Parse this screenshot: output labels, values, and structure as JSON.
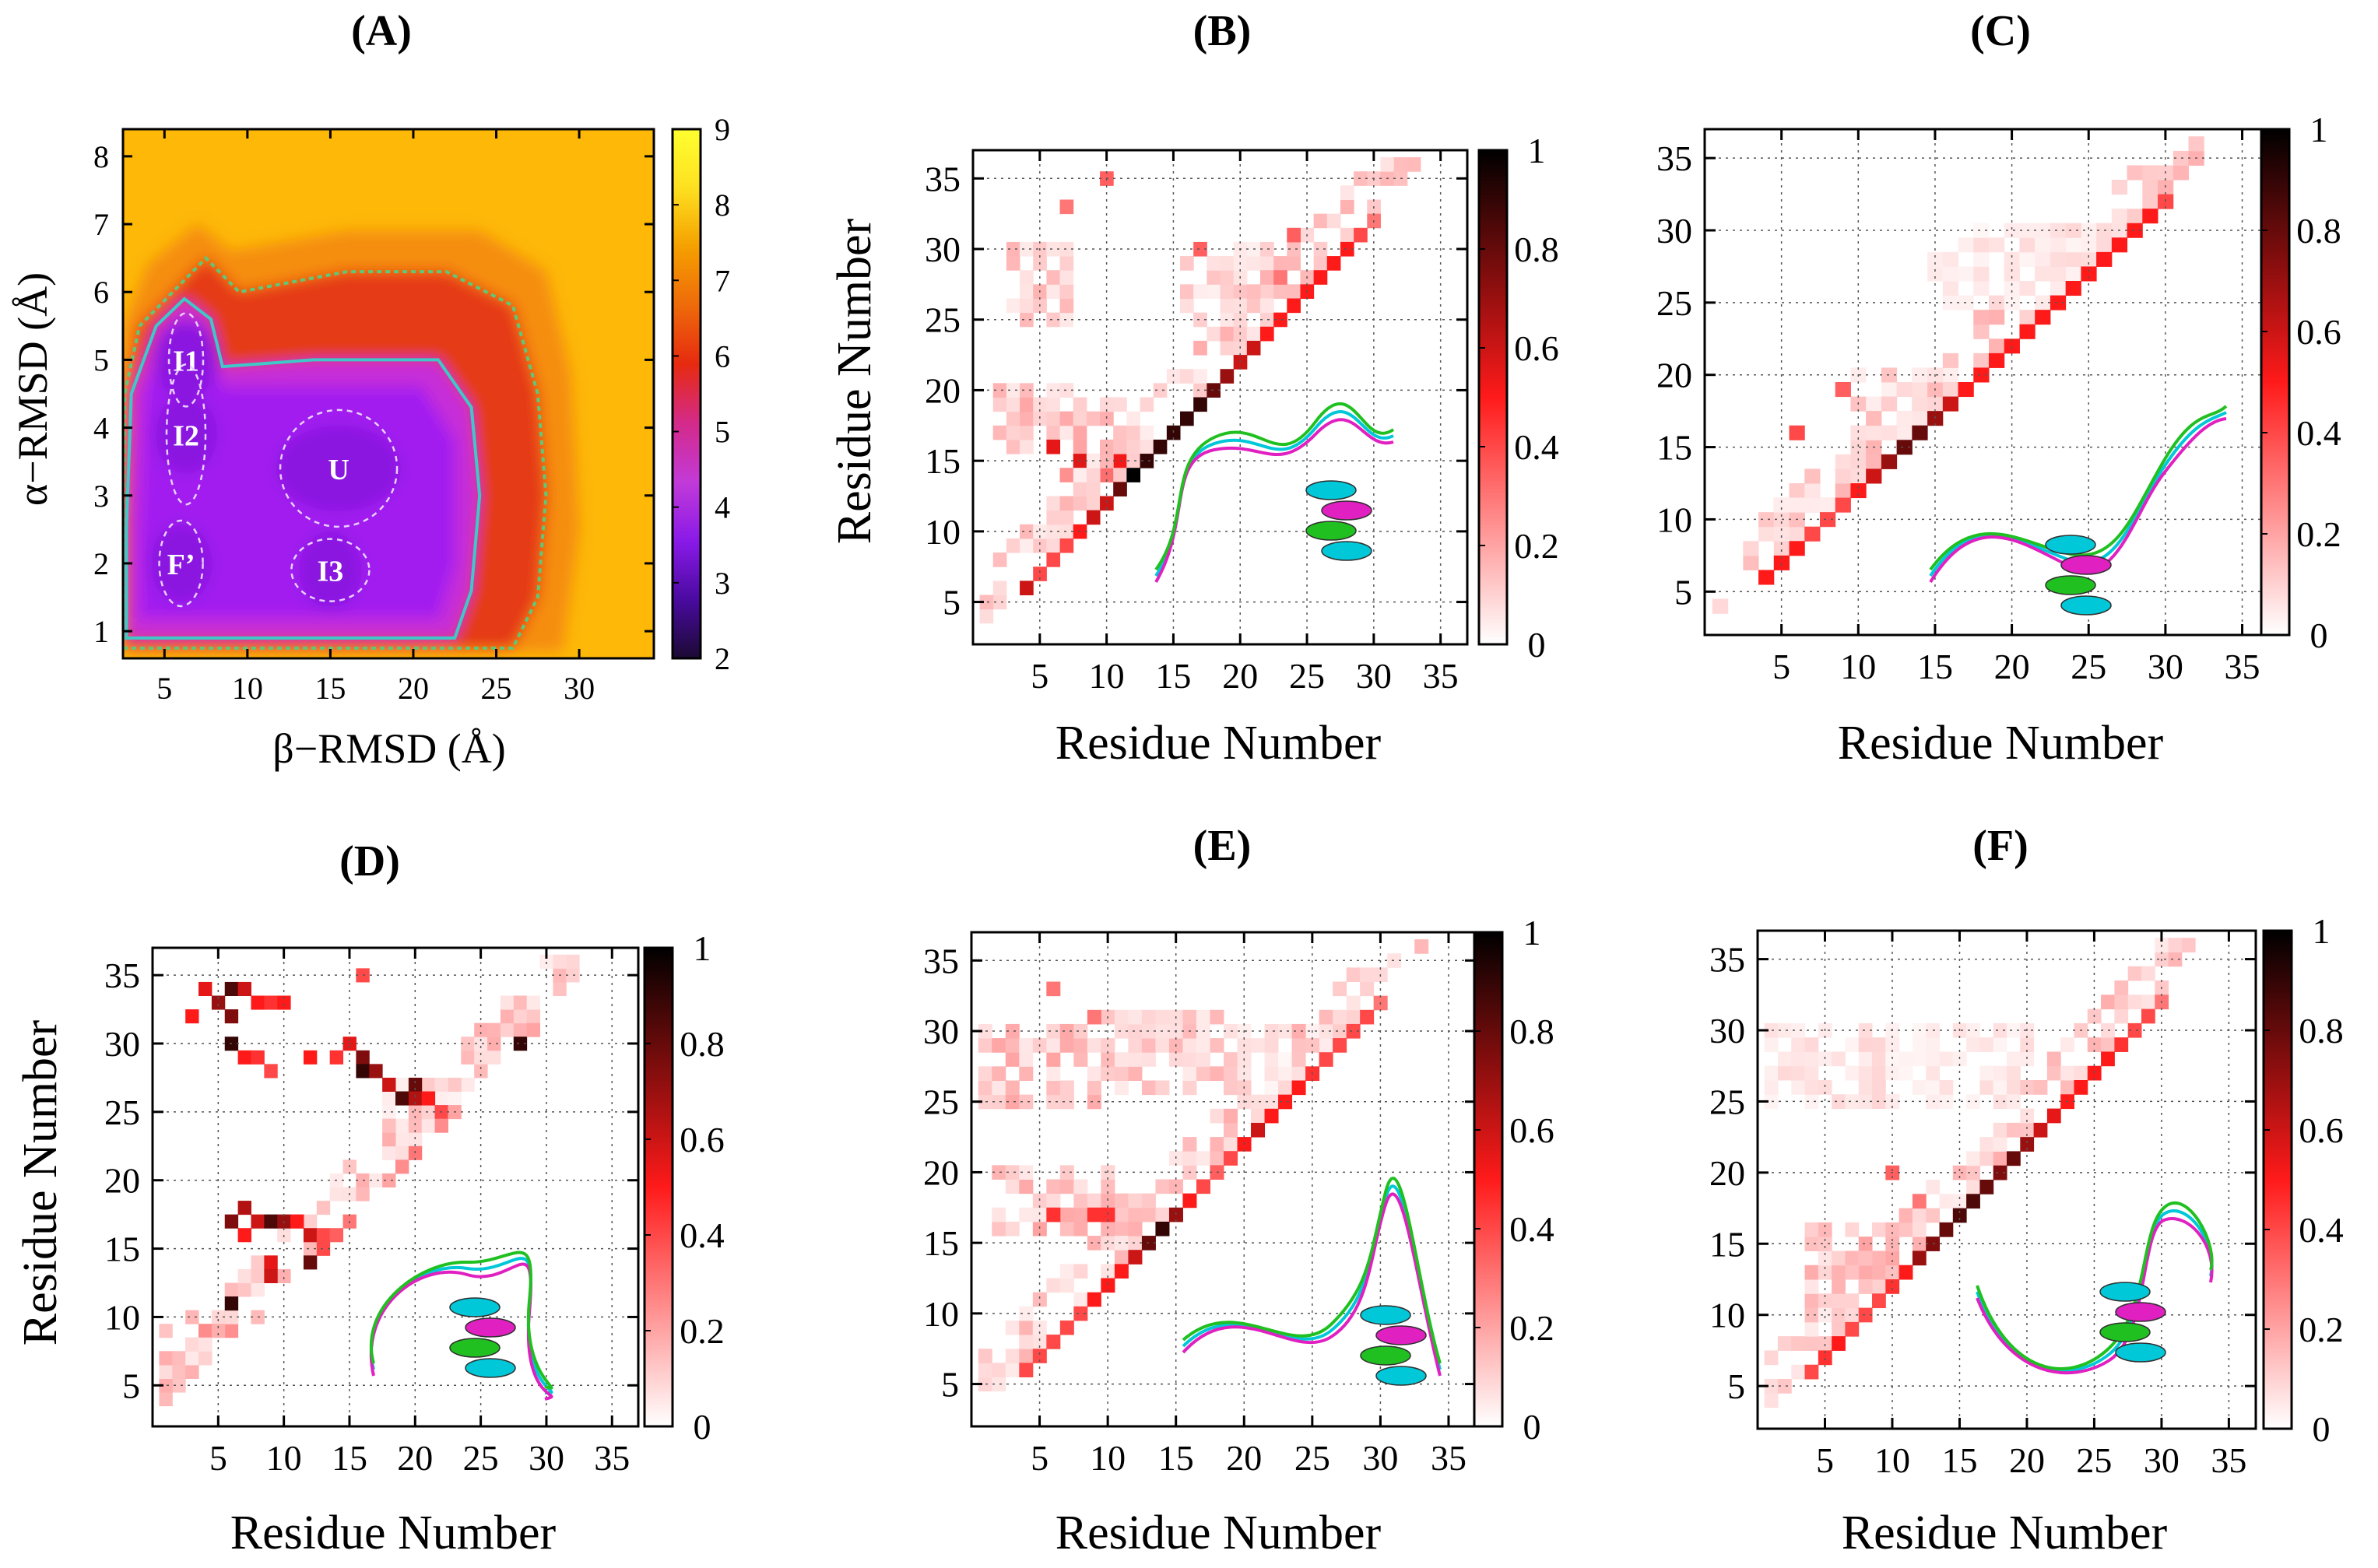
{
  "colors": {
    "pmf_stops": [
      "#1b0a33",
      "#4a0aa0",
      "#8a1ae8",
      "#c23ad8",
      "#d42a8a",
      "#e62a10",
      "#ee6a0a",
      "#f5a000",
      "#fde020",
      "#ffff30"
    ],
    "pmf_background": "#fdb808",
    "pmf_contour_outer": "#5fc878",
    "pmf_contour_inner": "#40c8c8",
    "pmf_basin_line": "#e8d0ff",
    "cm_low": "#ffffff",
    "cm_mid": "#ff1a1a",
    "cm_high": "#000000",
    "structure_colors": [
      "#00c8d8",
      "#e020c0",
      "#20c020"
    ]
  },
  "chart_data": [
    {
      "panel": "(A)",
      "type": "heatmap",
      "xlabel": "β−RMSD (Å)",
      "ylabel": "α−RMSD (Å)",
      "xlim": [
        2.5,
        34.5
      ],
      "ylim": [
        0.6,
        8.4
      ],
      "xticks": [
        5,
        10,
        15,
        20,
        25,
        30
      ],
      "yticks": [
        1,
        2,
        3,
        4,
        5,
        6,
        7,
        8
      ],
      "colorbar": {
        "range": [
          2,
          9
        ],
        "ticks": [
          2,
          3,
          4,
          5,
          6,
          7,
          8,
          9
        ]
      },
      "basins": [
        {
          "label": "I1",
          "x": 6.3,
          "y": 5.0
        },
        {
          "label": "I2",
          "x": 6.3,
          "y": 3.9
        },
        {
          "label": "U",
          "x": 15.5,
          "y": 3.4
        },
        {
          "label": "F’",
          "x": 6.0,
          "y": 2.0
        },
        {
          "label": "I3",
          "x": 15.0,
          "y": 1.9
        }
      ]
    },
    {
      "panel": "(B)",
      "type": "heatmap",
      "xlabel": "Residue Number",
      "ylabel": "Residue Number",
      "xlim": [
        0,
        37
      ],
      "ylim": [
        2,
        37
      ],
      "xticks": [
        5,
        10,
        15,
        20,
        25,
        30,
        35
      ],
      "yticks": [
        5,
        10,
        15,
        20,
        25,
        30,
        35
      ],
      "colorbar": {
        "range": [
          0,
          1
        ],
        "ticks": [
          "0",
          "0.2",
          "0.4",
          "0.6",
          "0.8",
          "1"
        ]
      },
      "diagonal": [
        [
          6,
          0.6
        ],
        [
          7,
          0.4
        ],
        [
          8,
          0.4
        ],
        [
          9,
          0.4
        ],
        [
          10,
          0.5
        ],
        [
          11,
          0.6
        ],
        [
          12,
          0.6
        ],
        [
          13,
          0.8
        ],
        [
          14,
          1.0
        ],
        [
          15,
          0.9
        ],
        [
          16,
          0.9
        ],
        [
          17,
          0.9
        ],
        [
          18,
          0.9
        ],
        [
          19,
          0.9
        ],
        [
          20,
          0.8
        ],
        [
          21,
          0.7
        ],
        [
          22,
          0.6
        ],
        [
          23,
          0.6
        ],
        [
          24,
          0.5
        ],
        [
          25,
          0.5
        ],
        [
          26,
          0.5
        ],
        [
          27,
          0.5
        ],
        [
          28,
          0.5
        ],
        [
          29,
          0.5
        ],
        [
          30,
          0.5
        ],
        [
          31,
          0.4
        ],
        [
          32,
          0.3
        ]
      ],
      "region_boxes": [
        [
          1,
          10,
          5,
          4,
          0.06
        ],
        [
          2,
          11,
          20,
          5,
          0.12
        ],
        [
          3,
          7,
          30,
          6,
          0.1
        ],
        [
          7,
          14,
          15,
          2,
          0.35
        ],
        [
          16,
          22,
          30,
          6,
          0.08
        ]
      ],
      "hotspots": [
        [
          6,
          16,
          0.55
        ],
        [
          7,
          33,
          0.3
        ],
        [
          10,
          35,
          0.35
        ],
        [
          17,
          30,
          0.35
        ],
        [
          24,
          31,
          0.35
        ],
        [
          23,
          28,
          0.3
        ]
      ]
    },
    {
      "panel": "(C)",
      "type": "heatmap",
      "xlabel": "Residue Number",
      "ylabel": "",
      "xlim": [
        0,
        37
      ],
      "ylim": [
        2,
        37
      ],
      "xticks": [
        5,
        10,
        15,
        20,
        25,
        30,
        35
      ],
      "yticks": [
        5,
        10,
        15,
        20,
        25,
        30,
        35
      ],
      "colorbar": {
        "range": [
          0,
          1
        ],
        "ticks": [
          "0",
          "0.2",
          "0.4",
          "0.6",
          "0.8",
          "1"
        ]
      },
      "diagonal": [
        [
          6,
          0.5
        ],
        [
          7,
          0.5
        ],
        [
          8,
          0.5
        ],
        [
          9,
          0.4
        ],
        [
          10,
          0.4
        ],
        [
          11,
          0.4
        ],
        [
          12,
          0.5
        ],
        [
          13,
          0.6
        ],
        [
          14,
          0.7
        ],
        [
          15,
          0.8
        ],
        [
          16,
          0.8
        ],
        [
          17,
          0.7
        ],
        [
          18,
          0.6
        ],
        [
          19,
          0.5
        ],
        [
          20,
          0.5
        ],
        [
          21,
          0.5
        ],
        [
          22,
          0.5
        ],
        [
          23,
          0.5
        ],
        [
          24,
          0.5
        ],
        [
          25,
          0.5
        ],
        [
          26,
          0.5
        ],
        [
          27,
          0.5
        ],
        [
          28,
          0.5
        ],
        [
          29,
          0.5
        ],
        [
          30,
          0.5
        ],
        [
          31,
          0.5
        ],
        [
          32,
          0.4
        ]
      ],
      "region_boxes": [
        [
          1,
          8,
          4,
          6,
          0.12
        ],
        [
          5,
          10,
          12,
          5,
          0.2
        ],
        [
          10,
          20,
          20,
          6,
          0.08
        ],
        [
          15,
          30,
          30,
          6,
          0.05
        ]
      ],
      "hotspots": [
        [
          6,
          16,
          0.4
        ],
        [
          9,
          19,
          0.35
        ]
      ]
    },
    {
      "panel": "(D)",
      "type": "heatmap",
      "xlabel": "Residue Number",
      "ylabel": "Residue Number",
      "xlim": [
        0,
        37
      ],
      "ylim": [
        2,
        37
      ],
      "xticks": [
        5,
        10,
        15,
        20,
        25,
        30,
        35
      ],
      "yticks": [
        5,
        10,
        15,
        20,
        25,
        30,
        35
      ],
      "colorbar": {
        "range": [
          0,
          1
        ],
        "ticks": [
          "0",
          "0.2",
          "0.4",
          "0.6",
          "0.8",
          "1"
        ]
      },
      "diagonal": [
        [
          10,
          0.15
        ],
        [
          14,
          0.8
        ],
        [
          15,
          0.4
        ],
        [
          16,
          0.35
        ],
        [
          17,
          0.3
        ],
        [
          20,
          0.2
        ],
        [
          21,
          0.25
        ],
        [
          22,
          0.3
        ],
        [
          24,
          0.25
        ],
        [
          25,
          0.2
        ],
        [
          30,
          0.9
        ],
        [
          31,
          0.2
        ]
      ],
      "region_boxes": [
        [
          1,
          9,
          5,
          5,
          0.08
        ],
        [
          1,
          30,
          10,
          6,
          0.15
        ],
        [
          18,
          28,
          27,
          6,
          0.04
        ]
      ],
      "hotspots": [
        [
          3,
          32,
          0.5
        ],
        [
          4,
          34,
          0.55
        ],
        [
          5,
          33,
          0.7
        ],
        [
          6,
          34,
          0.85
        ],
        [
          7,
          34,
          0.6
        ],
        [
          6,
          32,
          0.75
        ],
        [
          8,
          33,
          0.5
        ],
        [
          9,
          33,
          0.45
        ],
        [
          10,
          33,
          0.5
        ],
        [
          6,
          30,
          0.9
        ],
        [
          7,
          29,
          0.5
        ],
        [
          9,
          28,
          0.4
        ],
        [
          8,
          29,
          0.45
        ],
        [
          12,
          29,
          0.5
        ],
        [
          14,
          29,
          0.45
        ],
        [
          15,
          30,
          0.55
        ],
        [
          16,
          29,
          0.75
        ],
        [
          16,
          28,
          0.9
        ],
        [
          17,
          28,
          0.7
        ],
        [
          18,
          27,
          0.6
        ],
        [
          19,
          26,
          0.85
        ],
        [
          20,
          27,
          0.8
        ],
        [
          20,
          26,
          0.65
        ],
        [
          21,
          26,
          0.5
        ],
        [
          22,
          25,
          0.4
        ],
        [
          16,
          35,
          0.4
        ],
        [
          7,
          18,
          0.65
        ],
        [
          8,
          17,
          0.6
        ],
        [
          9,
          17,
          0.85
        ],
        [
          10,
          17,
          0.7
        ],
        [
          11,
          17,
          0.5
        ],
        [
          12,
          16,
          0.6
        ],
        [
          13,
          16,
          0.4
        ],
        [
          6,
          17,
          0.75
        ],
        [
          7,
          16,
          0.5
        ],
        [
          9,
          14,
          0.55
        ],
        [
          9,
          13,
          0.6
        ],
        [
          6,
          11,
          0.9
        ]
      ]
    },
    {
      "panel": "(E)",
      "type": "heatmap",
      "xlabel": "Residue Number",
      "ylabel": "",
      "xlim": [
        0,
        37
      ],
      "ylim": [
        2,
        37
      ],
      "xticks": [
        5,
        10,
        15,
        20,
        25,
        30,
        35
      ],
      "yticks": [
        5,
        10,
        15,
        20,
        25,
        30,
        35
      ],
      "colorbar": {
        "range": [
          0,
          1
        ],
        "ticks": [
          "0",
          "0.2",
          "0.4",
          "0.6",
          "0.8",
          "1"
        ]
      },
      "diagonal": [
        [
          6,
          0.4
        ],
        [
          7,
          0.4
        ],
        [
          8,
          0.4
        ],
        [
          9,
          0.4
        ],
        [
          10,
          0.4
        ],
        [
          11,
          0.5
        ],
        [
          12,
          0.5
        ],
        [
          13,
          0.5
        ],
        [
          14,
          0.6
        ],
        [
          15,
          0.8
        ],
        [
          16,
          0.9
        ],
        [
          17,
          0.7
        ],
        [
          18,
          0.5
        ],
        [
          19,
          0.4
        ],
        [
          20,
          0.35
        ],
        [
          21,
          0.4
        ],
        [
          22,
          0.5
        ],
        [
          23,
          0.6
        ],
        [
          24,
          0.5
        ],
        [
          25,
          0.5
        ],
        [
          26,
          0.5
        ],
        [
          27,
          0.45
        ],
        [
          28,
          0.4
        ],
        [
          29,
          0.4
        ],
        [
          30,
          0.4
        ],
        [
          31,
          0.4
        ],
        [
          32,
          0.3
        ]
      ],
      "region_boxes": [
        [
          1,
          10,
          5,
          4,
          0.08
        ],
        [
          2,
          12,
          20,
          5,
          0.12
        ],
        [
          1,
          9,
          30,
          6,
          0.12
        ],
        [
          10,
          20,
          31,
          6,
          0.1
        ],
        [
          20,
          28,
          30,
          5,
          0.05
        ]
      ],
      "hotspots": [
        [
          6,
          17,
          0.45
        ],
        [
          9,
          17,
          0.45
        ],
        [
          10,
          17,
          0.45
        ],
        [
          6,
          33,
          0.3
        ],
        [
          9,
          31,
          0.3
        ]
      ]
    },
    {
      "panel": "(F)",
      "type": "heatmap",
      "xlabel": "Residue Number",
      "ylabel": "",
      "xlim": [
        0,
        37
      ],
      "ylim": [
        2,
        37
      ],
      "xticks": [
        5,
        10,
        15,
        20,
        25,
        30,
        35
      ],
      "yticks": [
        5,
        10,
        15,
        20,
        25,
        30,
        35
      ],
      "colorbar": {
        "range": [
          0,
          1
        ],
        "ticks": [
          "0",
          "0.2",
          "0.4",
          "0.6",
          "0.8",
          "1"
        ]
      },
      "diagonal": [
        [
          6,
          0.4
        ],
        [
          7,
          0.45
        ],
        [
          8,
          0.5
        ],
        [
          9,
          0.4
        ],
        [
          10,
          0.4
        ],
        [
          11,
          0.4
        ],
        [
          12,
          0.45
        ],
        [
          13,
          0.5
        ],
        [
          14,
          0.7
        ],
        [
          15,
          0.75
        ],
        [
          16,
          0.8
        ],
        [
          17,
          0.85
        ],
        [
          18,
          0.85
        ],
        [
          19,
          0.8
        ],
        [
          20,
          0.75
        ],
        [
          21,
          0.8
        ],
        [
          22,
          0.7
        ],
        [
          23,
          0.6
        ],
        [
          24,
          0.55
        ],
        [
          25,
          0.5
        ],
        [
          26,
          0.5
        ],
        [
          27,
          0.5
        ],
        [
          28,
          0.5
        ],
        [
          29,
          0.45
        ],
        [
          30,
          0.4
        ],
        [
          31,
          0.4
        ],
        [
          32,
          0.3
        ]
      ],
      "region_boxes": [
        [
          1,
          8,
          4,
          7,
          0.1
        ],
        [
          4,
          10,
          16,
          6,
          0.12
        ],
        [
          1,
          10,
          30,
          6,
          0.06
        ],
        [
          10,
          20,
          30,
          6,
          0.05
        ]
      ],
      "hotspots": [
        [
          10,
          20,
          0.35
        ],
        [
          12,
          18,
          0.3
        ]
      ]
    }
  ]
}
